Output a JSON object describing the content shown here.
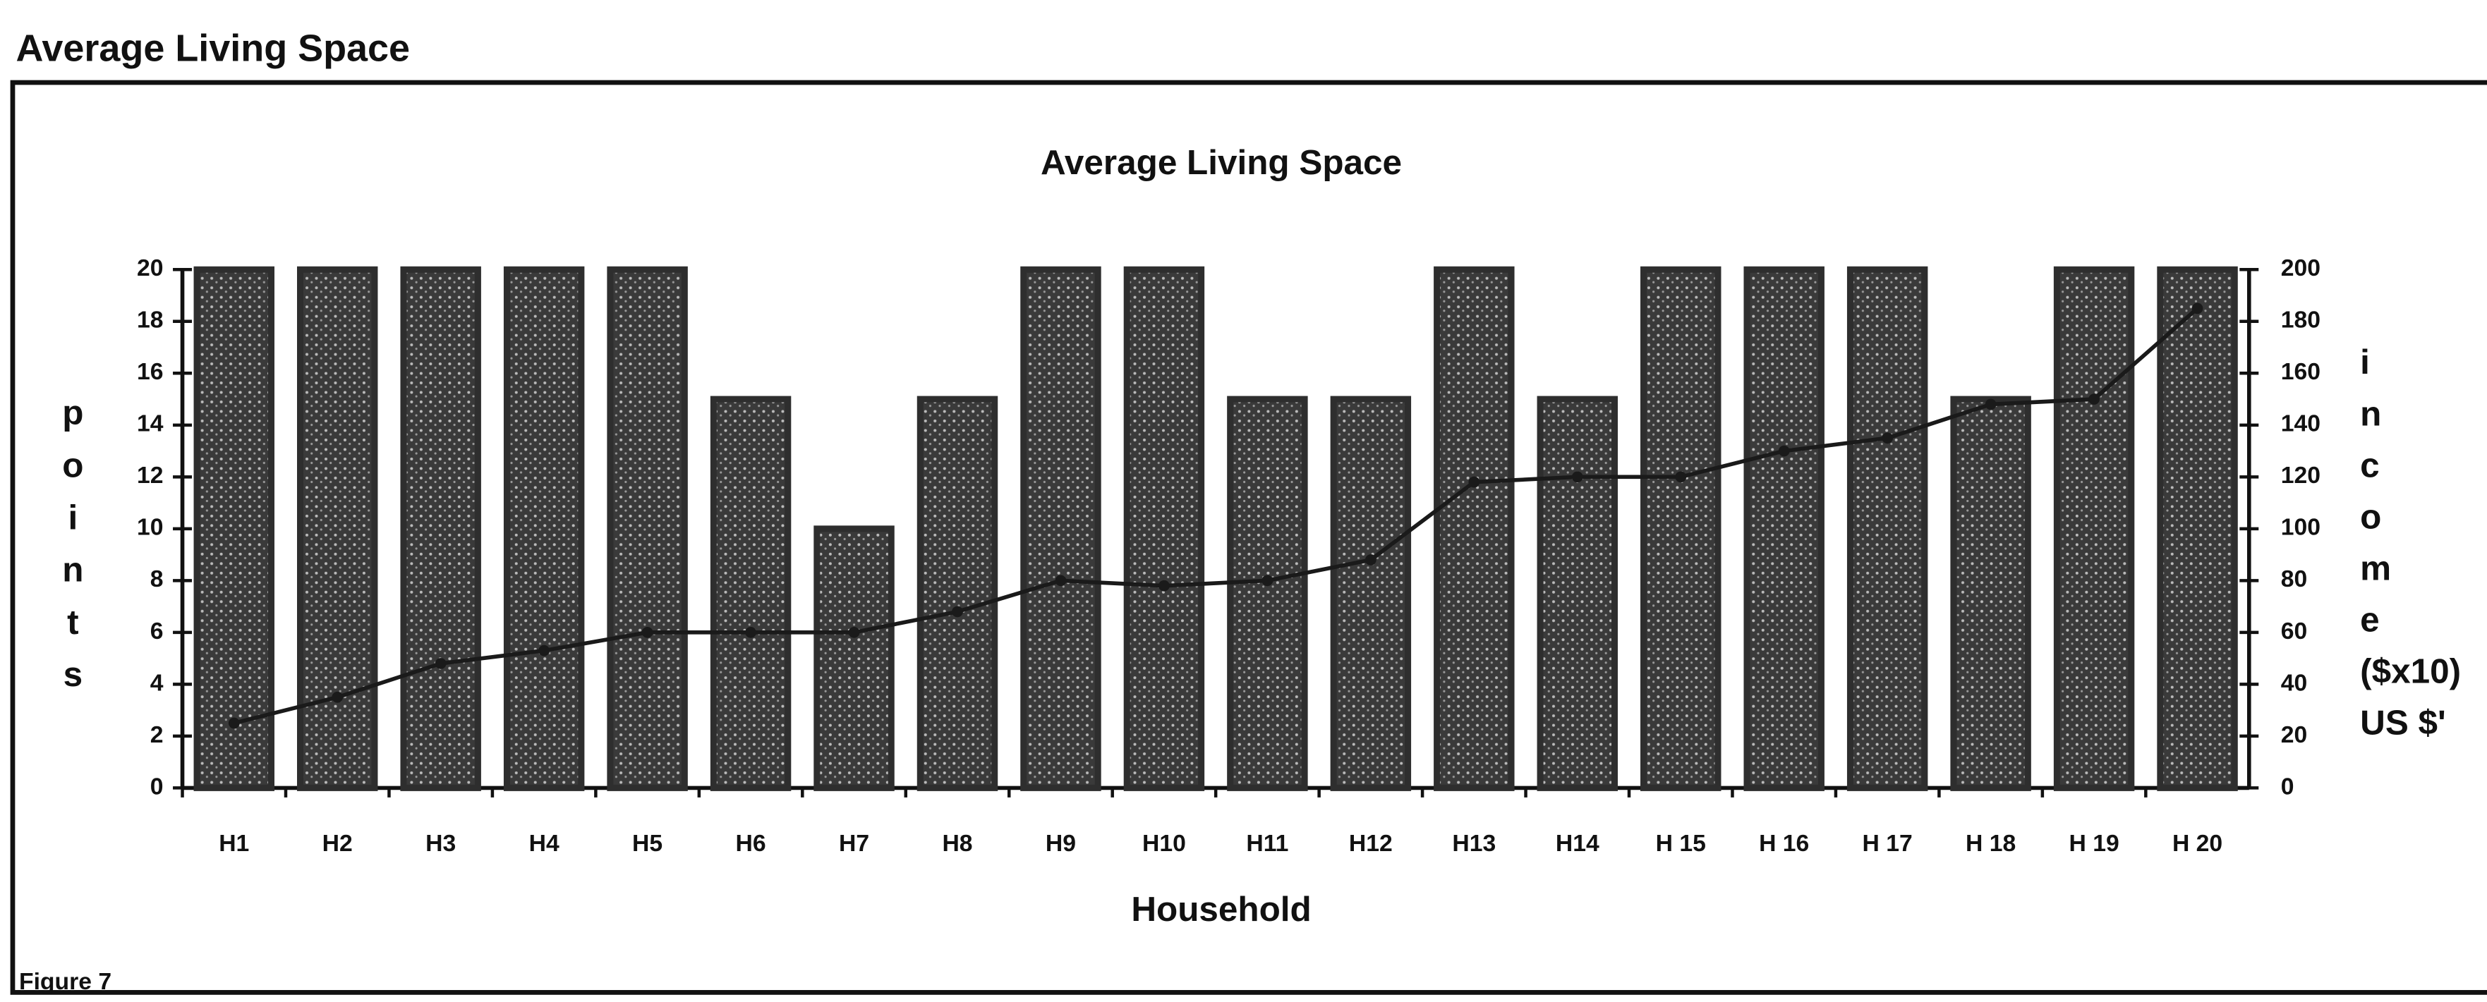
{
  "page_title": "Average Living Space",
  "figure_label": "Figure 7",
  "chart_data": {
    "type": "bar",
    "title": "Average Living Space",
    "xlabel": "Household",
    "ylabel": [
      "p",
      "o",
      "i",
      "n",
      "t",
      "s"
    ],
    "y2label": [
      "i",
      "n",
      "c",
      "o",
      "m",
      "e",
      "($x10)",
      "US $'"
    ],
    "categories": [
      "H1",
      "H2",
      "H3",
      "H4",
      "H5",
      "H6",
      "H7",
      "H8",
      "H9",
      "H10",
      "H11",
      "H12",
      "H13",
      "H14",
      "H 15",
      "H 16",
      "H 17",
      "H 18",
      "H 19",
      "H 20"
    ],
    "series": [
      {
        "type": "bar",
        "color": "#2e2e2e",
        "values": [
          20,
          20,
          20,
          20,
          20,
          15,
          10,
          15,
          20,
          20,
          15,
          15,
          20,
          15,
          20,
          20,
          20,
          15,
          20,
          20
        ]
      },
      {
        "type": "line",
        "axis": "y2",
        "color": "#1a1a1a",
        "values": [
          25,
          35,
          48,
          53,
          60,
          60,
          60,
          68,
          80,
          78,
          80,
          88,
          118,
          120,
          120,
          130,
          135,
          148,
          150,
          185
        ]
      }
    ],
    "ylim": [
      0,
      20
    ],
    "yticks": [
      0,
      2,
      4,
      6,
      8,
      10,
      12,
      14,
      16,
      18,
      20
    ],
    "y2lim": [
      0,
      200
    ],
    "y2ticks": [
      0,
      20,
      40,
      60,
      80,
      100,
      120,
      140,
      160,
      180,
      200
    ]
  }
}
